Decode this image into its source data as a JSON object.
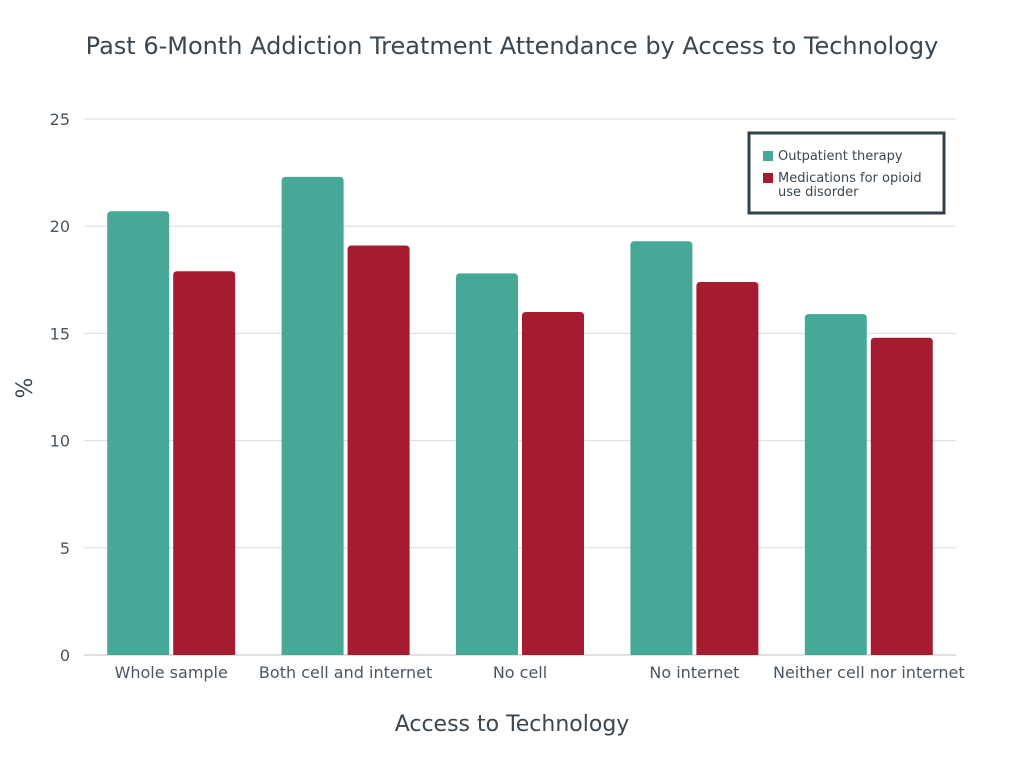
{
  "chart_data": {
    "type": "bar",
    "title": "Past 6-Month Addiction Treatment Attendance by Access to Technology",
    "xlabel": "Access to Technology",
    "ylabel": "%",
    "ylim": [
      0,
      25
    ],
    "yticks": [
      0,
      5,
      10,
      15,
      20,
      25
    ],
    "grid": true,
    "legend_position": "top-right",
    "categories": [
      "Whole sample",
      "Both cell and internet",
      "No cell",
      "No internet",
      "Neither cell nor internet"
    ],
    "series": [
      {
        "name": "Outpatient therapy",
        "color": "#46a896",
        "values": [
          20.7,
          22.3,
          17.8,
          19.3,
          15.9
        ]
      },
      {
        "name": "Medications for opioid use disorder",
        "legend_lines": [
          "Medications for opioid",
          "use disorder"
        ],
        "color": "#a51c30",
        "values": [
          17.9,
          19.1,
          16.0,
          17.4,
          14.8
        ]
      }
    ]
  }
}
